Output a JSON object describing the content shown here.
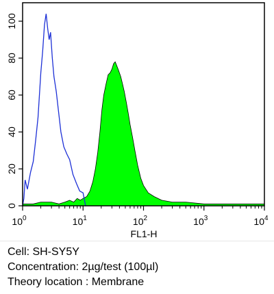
{
  "chart_data": {
    "type": "area",
    "xlabel": "FL1-H",
    "xscale": "log",
    "xlim": [
      1,
      10000
    ],
    "ylim": [
      0,
      110
    ],
    "x_ticks": [
      {
        "base": "10",
        "exp": "0"
      },
      {
        "base": "10",
        "exp": "1"
      },
      {
        "base": "10",
        "exp": "2"
      },
      {
        "base": "10",
        "exp": "3"
      },
      {
        "base": "10",
        "exp": "4"
      }
    ],
    "y_ticks": [
      "0",
      "20",
      "40",
      "60",
      "80",
      "100"
    ],
    "series": [
      {
        "style": "outline",
        "color": "#1c2fd6",
        "points": [
          [
            1.0,
            0
          ],
          [
            1.05,
            4
          ],
          [
            1.1,
            14
          ],
          [
            1.2,
            9
          ],
          [
            1.35,
            18
          ],
          [
            1.5,
            24
          ],
          [
            1.65,
            36
          ],
          [
            1.8,
            48
          ],
          [
            2.0,
            72
          ],
          [
            2.15,
            84
          ],
          [
            2.3,
            98
          ],
          [
            2.45,
            104
          ],
          [
            2.6,
            96
          ],
          [
            2.75,
            90
          ],
          [
            2.9,
            94
          ],
          [
            3.1,
            80
          ],
          [
            3.3,
            70
          ],
          [
            3.6,
            62
          ],
          [
            3.9,
            52
          ],
          [
            4.3,
            40
          ],
          [
            4.8,
            32
          ],
          [
            5.4,
            28
          ],
          [
            6.0,
            25
          ],
          [
            6.8,
            17
          ],
          [
            7.8,
            12
          ],
          [
            8.8,
            8
          ],
          [
            10.0,
            7
          ],
          [
            11.0,
            0
          ]
        ]
      },
      {
        "style": "filled",
        "color": "#00ff00",
        "points": [
          [
            1.0,
            1
          ],
          [
            1.5,
            1
          ],
          [
            2.0,
            2
          ],
          [
            3.0,
            2
          ],
          [
            4.0,
            1
          ],
          [
            5.0,
            2
          ],
          [
            6.0,
            3
          ],
          [
            7.0,
            2
          ],
          [
            8.0,
            4
          ],
          [
            9.0,
            3
          ],
          [
            10.0,
            4
          ],
          [
            11.5,
            5
          ],
          [
            13.0,
            8
          ],
          [
            14.5,
            13
          ],
          [
            16.0,
            20
          ],
          [
            17.5,
            29
          ],
          [
            19.0,
            40
          ],
          [
            20.5,
            52
          ],
          [
            22.0,
            60
          ],
          [
            24.0,
            66
          ],
          [
            26.0,
            71
          ],
          [
            28.0,
            72
          ],
          [
            30.0,
            74
          ],
          [
            32.0,
            77
          ],
          [
            34.0,
            78
          ],
          [
            36.0,
            76
          ],
          [
            38.0,
            74
          ],
          [
            40.0,
            72
          ],
          [
            42.0,
            70
          ],
          [
            45.0,
            66
          ],
          [
            48.0,
            62
          ],
          [
            52.0,
            56
          ],
          [
            56.0,
            50
          ],
          [
            60.0,
            44
          ],
          [
            66.0,
            37
          ],
          [
            72.0,
            30
          ],
          [
            80.0,
            22
          ],
          [
            90.0,
            15
          ],
          [
            100.0,
            11
          ],
          [
            120.0,
            7
          ],
          [
            150.0,
            5
          ],
          [
            200.0,
            3
          ],
          [
            300.0,
            2
          ],
          [
            500.0,
            2
          ],
          [
            1000.0,
            1
          ],
          [
            2000.0,
            1
          ],
          [
            5000.0,
            1
          ],
          [
            10000.0,
            1
          ]
        ]
      }
    ]
  },
  "captions": {
    "cell": "Cell: SH-SY5Y",
    "concentration": "Concentration: 2µg/test (100µl)",
    "location": "Theory location : Membrane"
  }
}
